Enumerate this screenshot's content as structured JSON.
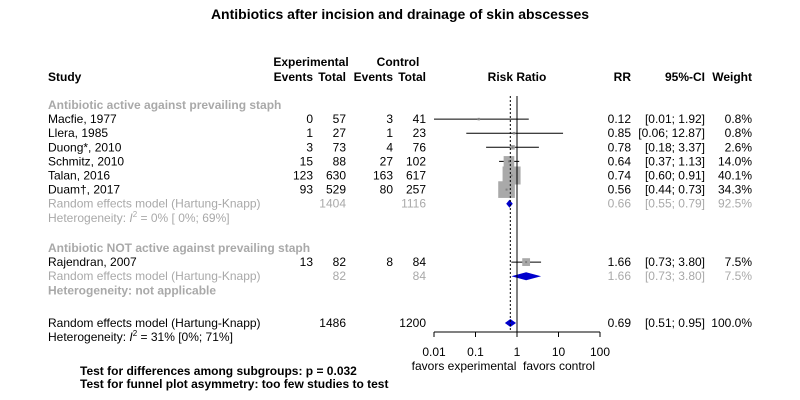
{
  "chart_data": {
    "type": "forest",
    "title": "Antibiotics after incision and drainage of skin abscesses",
    "header": {
      "group_experimental": "Experimental",
      "group_control": "Control",
      "study": "Study",
      "events": "Events",
      "total": "Total",
      "risk_ratio": "Risk Ratio",
      "rr": "RR",
      "ci": "95%-CI",
      "weight": "Weight"
    },
    "colors": {
      "marker": "#808080",
      "box": "#a9a9a9",
      "diamond": "#0000cd",
      "grey_text": "#a9a9a9"
    },
    "x_axis": {
      "scale": "log",
      "ticks": [
        0.01,
        0.1,
        1,
        10,
        100
      ],
      "tick_labels": [
        "0.01",
        "0.1",
        "1",
        "10",
        "100"
      ],
      "null_value": 1,
      "label_left": "favors experimental",
      "label_right": "favors control"
    },
    "subgroups": [
      {
        "label": "Antibiotic active against prevailing staph",
        "studies": [
          {
            "study": "Macfie, 1977",
            "e_events": "0",
            "e_total": "57",
            "c_events": "3",
            "c_total": "41",
            "rr": 0.12,
            "lo": 0.01,
            "hi": 1.92,
            "rr_text": "0.12",
            "ci_text": "[0.01;  1.92]",
            "weight": 0.8,
            "weight_text": "0.8%"
          },
          {
            "study": "Llera, 1985",
            "e_events": "1",
            "e_total": "27",
            "c_events": "1",
            "c_total": "23",
            "rr": 0.85,
            "lo": 0.06,
            "hi": 12.87,
            "rr_text": "0.85",
            "ci_text": "[0.06; 12.87]",
            "weight": 0.8,
            "weight_text": "0.8%"
          },
          {
            "study": "Duong*, 2010",
            "e_events": "3",
            "e_total": "73",
            "c_events": "4",
            "c_total": "76",
            "rr": 0.78,
            "lo": 0.18,
            "hi": 3.37,
            "rr_text": "0.78",
            "ci_text": "[0.18;  3.37]",
            "weight": 2.6,
            "weight_text": "2.6%"
          },
          {
            "study": "Schmitz, 2010",
            "e_events": "15",
            "e_total": "88",
            "c_events": "27",
            "c_total": "102",
            "rr": 0.64,
            "lo": 0.37,
            "hi": 1.13,
            "rr_text": "0.64",
            "ci_text": "[0.37;  1.13]",
            "weight": 14.0,
            "weight_text": "14.0%"
          },
          {
            "study": "Talan, 2016",
            "e_events": "123",
            "e_total": "630",
            "c_events": "163",
            "c_total": "617",
            "rr": 0.74,
            "lo": 0.6,
            "hi": 0.91,
            "rr_text": "0.74",
            "ci_text": "[0.60;  0.91]",
            "weight": 40.1,
            "weight_text": "40.1%"
          },
          {
            "study": "Duam†, 2017",
            "e_events": "93",
            "e_total": "529",
            "c_events": "80",
            "c_total": "257",
            "rr": 0.56,
            "lo": 0.44,
            "hi": 0.73,
            "rr_text": "0.56",
            "ci_text": "[0.44;  0.73]",
            "weight": 34.3,
            "weight_text": "34.3%"
          }
        ],
        "pooled": {
          "label": "Random effects model  (Hartung-Knapp)",
          "e_total": "1404",
          "c_total": "1116",
          "rr": 0.66,
          "lo": 0.55,
          "hi": 0.79,
          "rr_text": "0.66",
          "ci_text": "[0.55;  0.79]",
          "weight_text": "92.5%"
        },
        "heterogeneity": {
          "prefix": "Heterogeneity: ",
          "i2": "I",
          "sup": "2",
          "rest": " = 0% [ 0%; 69%]"
        }
      },
      {
        "label": "Antibiotic NOT active against prevailing staph",
        "studies": [
          {
            "study": "Rajendran, 2007",
            "e_events": "13",
            "e_total": "82",
            "c_events": "8",
            "c_total": "84",
            "rr": 1.66,
            "lo": 0.73,
            "hi": 3.8,
            "rr_text": "1.66",
            "ci_text": "[0.73;  3.80]",
            "weight": 7.5,
            "weight_text": "7.5%"
          }
        ],
        "pooled": {
          "label": "Random effects model  (Hartung-Knapp)",
          "e_total": "82",
          "c_total": "84",
          "rr": 1.66,
          "lo": 0.73,
          "hi": 3.8,
          "rr_text": "1.66",
          "ci_text": "[0.73;  3.80]",
          "weight_text": "7.5%"
        },
        "heterogeneity_text": "Heterogeneity: not applicable"
      }
    ],
    "overall": {
      "label": "Random effects model  (Hartung-Knapp)",
      "e_total": "1486",
      "c_total": "1200",
      "rr": 0.69,
      "lo": 0.51,
      "hi": 0.95,
      "rr_text": "0.69",
      "ci_text": "[0.51;  0.95]",
      "weight_text": "100.0%",
      "heterogeneity": {
        "prefix": "Heterogeneity: ",
        "i2": "I",
        "sup": "2",
        "rest": " = 31% [0%; 71%]"
      }
    },
    "footer": [
      "Test for differences among subgroups: p = 0.032",
      "Test for funnel plot asymmetry: too few studies to test"
    ]
  }
}
